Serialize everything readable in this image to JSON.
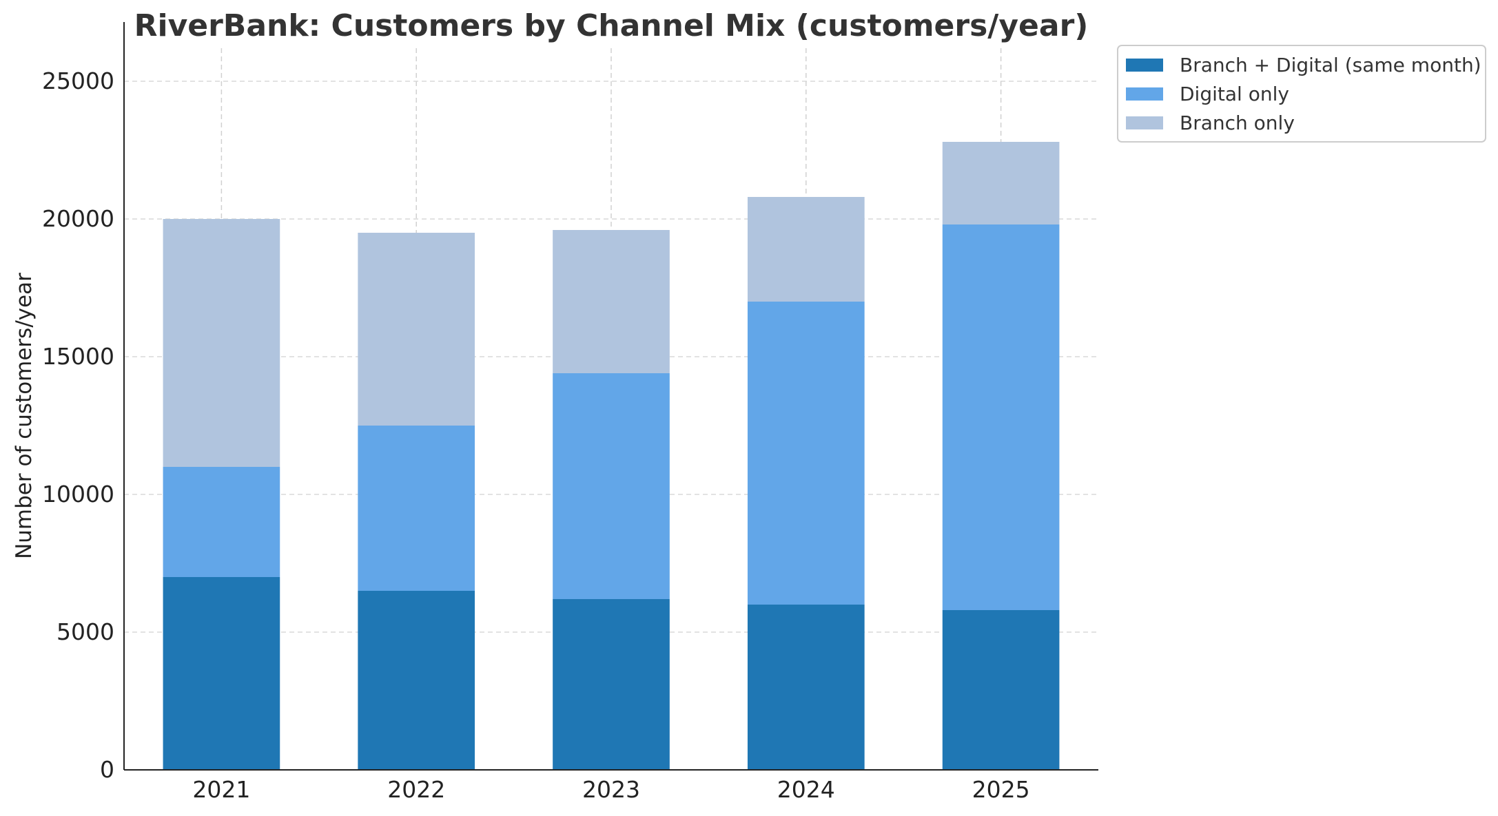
{
  "chart_data": {
    "type": "bar",
    "stacked": true,
    "title": "RiverBank: Customers by Channel Mix (customers/year)",
    "xlabel": "",
    "ylabel": "Number of customers/year",
    "categories": [
      "2021",
      "2022",
      "2023",
      "2024",
      "2025"
    ],
    "ylim": [
      0,
      26200
    ],
    "yticks": [
      0,
      5000,
      10000,
      15000,
      20000,
      25000
    ],
    "grid": true,
    "legend_position": "outside-top-right",
    "series": [
      {
        "name": "Branch + Digital (same month)",
        "color": "#1f77b4",
        "values": [
          7000,
          6500,
          6200,
          6000,
          5800
        ]
      },
      {
        "name": "Digital only",
        "color": "#62a6e8",
        "values": [
          4000,
          6000,
          8200,
          11000,
          14000
        ]
      },
      {
        "name": "Branch only",
        "color": "#b0c4de",
        "values": [
          9000,
          7000,
          5200,
          3800,
          3000
        ]
      }
    ]
  }
}
